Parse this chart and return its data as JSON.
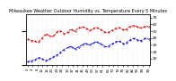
{
  "title": "Milwaukee Weather Outdoor Humidity vs. Temperature Every 5 Minutes",
  "background_color": "#ffffff",
  "red_color": "#cc0000",
  "blue_color": "#0000cc",
  "grid_color": "#cccccc",
  "ylim_left": [
    0,
    75
  ],
  "ylim_right": [
    0,
    75
  ],
  "yticks_right": [
    10,
    20,
    30,
    40,
    50,
    60,
    70
  ],
  "ytick_fontsize": 3.2,
  "xtick_fontsize": 2.8,
  "title_fontsize": 3.5,
  "red_y": [
    38,
    38,
    36,
    36,
    36,
    35,
    35,
    34,
    34,
    34,
    36,
    38,
    40,
    42,
    44,
    45,
    46,
    44,
    43,
    42,
    42,
    43,
    44,
    46,
    48,
    50,
    50,
    50,
    49,
    48,
    46,
    47,
    47,
    48,
    50,
    52,
    52,
    51,
    50,
    50,
    52,
    54,
    55,
    55,
    55,
    56,
    56,
    55,
    54,
    53,
    52,
    51,
    52,
    53,
    54,
    55,
    55,
    55,
    54,
    53,
    52,
    51,
    50,
    49,
    48,
    47,
    48,
    49,
    50,
    51,
    52,
    53,
    54,
    55,
    55,
    55,
    54,
    53,
    52,
    51,
    52,
    53,
    55,
    56,
    57,
    57,
    58,
    58,
    58,
    57,
    56,
    55,
    55,
    55,
    55,
    56,
    57,
    58,
    57,
    56
  ],
  "blue_y": [
    5,
    5,
    6,
    6,
    7,
    7,
    8,
    9,
    10,
    11,
    11,
    10,
    9,
    8,
    7,
    7,
    7,
    8,
    9,
    10,
    11,
    12,
    13,
    14,
    15,
    16,
    17,
    19,
    21,
    22,
    23,
    24,
    25,
    26,
    27,
    27,
    27,
    26,
    25,
    24,
    25,
    26,
    27,
    28,
    29,
    30,
    31,
    32,
    32,
    31,
    30,
    30,
    31,
    32,
    33,
    34,
    34,
    34,
    33,
    32,
    31,
    30,
    29,
    28,
    27,
    27,
    28,
    29,
    30,
    31,
    32,
    33,
    34,
    35,
    35,
    35,
    34,
    33,
    32,
    31,
    32,
    33,
    35,
    36,
    37,
    38,
    39,
    39,
    39,
    38,
    37,
    36,
    36,
    36,
    37,
    38,
    39,
    40,
    39,
    38
  ],
  "n_points": 100,
  "n_xticks": 25
}
